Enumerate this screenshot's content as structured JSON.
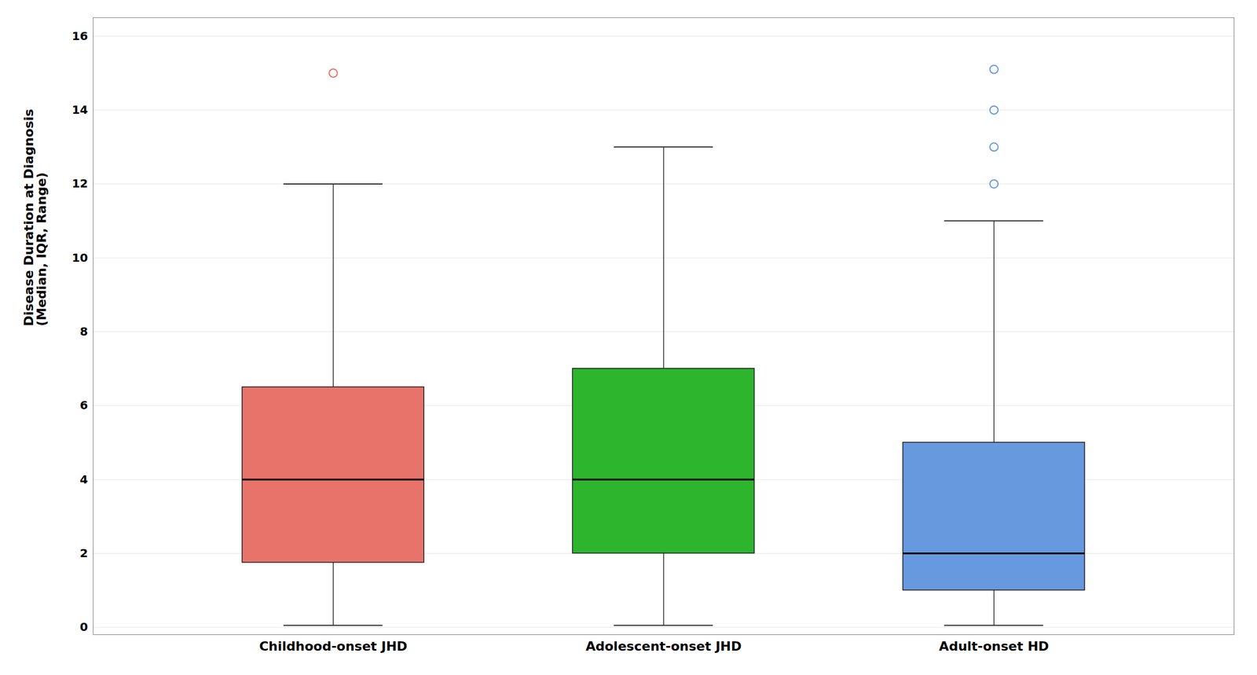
{
  "chart_data": {
    "type": "box",
    "categories": [
      "Childhood-onset JHD",
      "Adolescent-onset JHD",
      "Adult-onset HD"
    ],
    "boxes": [
      {
        "med": 4.0,
        "q1": 1.75,
        "q3": 6.5,
        "whislo": 0.05,
        "whishi": 12.0,
        "fliers": [
          15.0
        ]
      },
      {
        "med": 4.0,
        "q1": 2.0,
        "q3": 7.0,
        "whislo": 0.05,
        "whishi": 13.0,
        "fliers": []
      },
      {
        "med": 2.0,
        "q1": 1.0,
        "q3": 5.0,
        "whislo": 0.05,
        "whishi": 11.0,
        "fliers": [
          12.0,
          13.0,
          14.0,
          15.1
        ]
      }
    ],
    "colors": [
      "#E8736A",
      "#2DB52D",
      "#6699DD"
    ],
    "ylabel": "Disease Duration at Diagnosis\n(Median, IQR, Range)",
    "ylim": [
      -0.2,
      16.5
    ],
    "yticks": [
      0,
      2,
      4,
      6,
      8,
      10,
      12,
      14,
      16
    ],
    "grid": true
  }
}
